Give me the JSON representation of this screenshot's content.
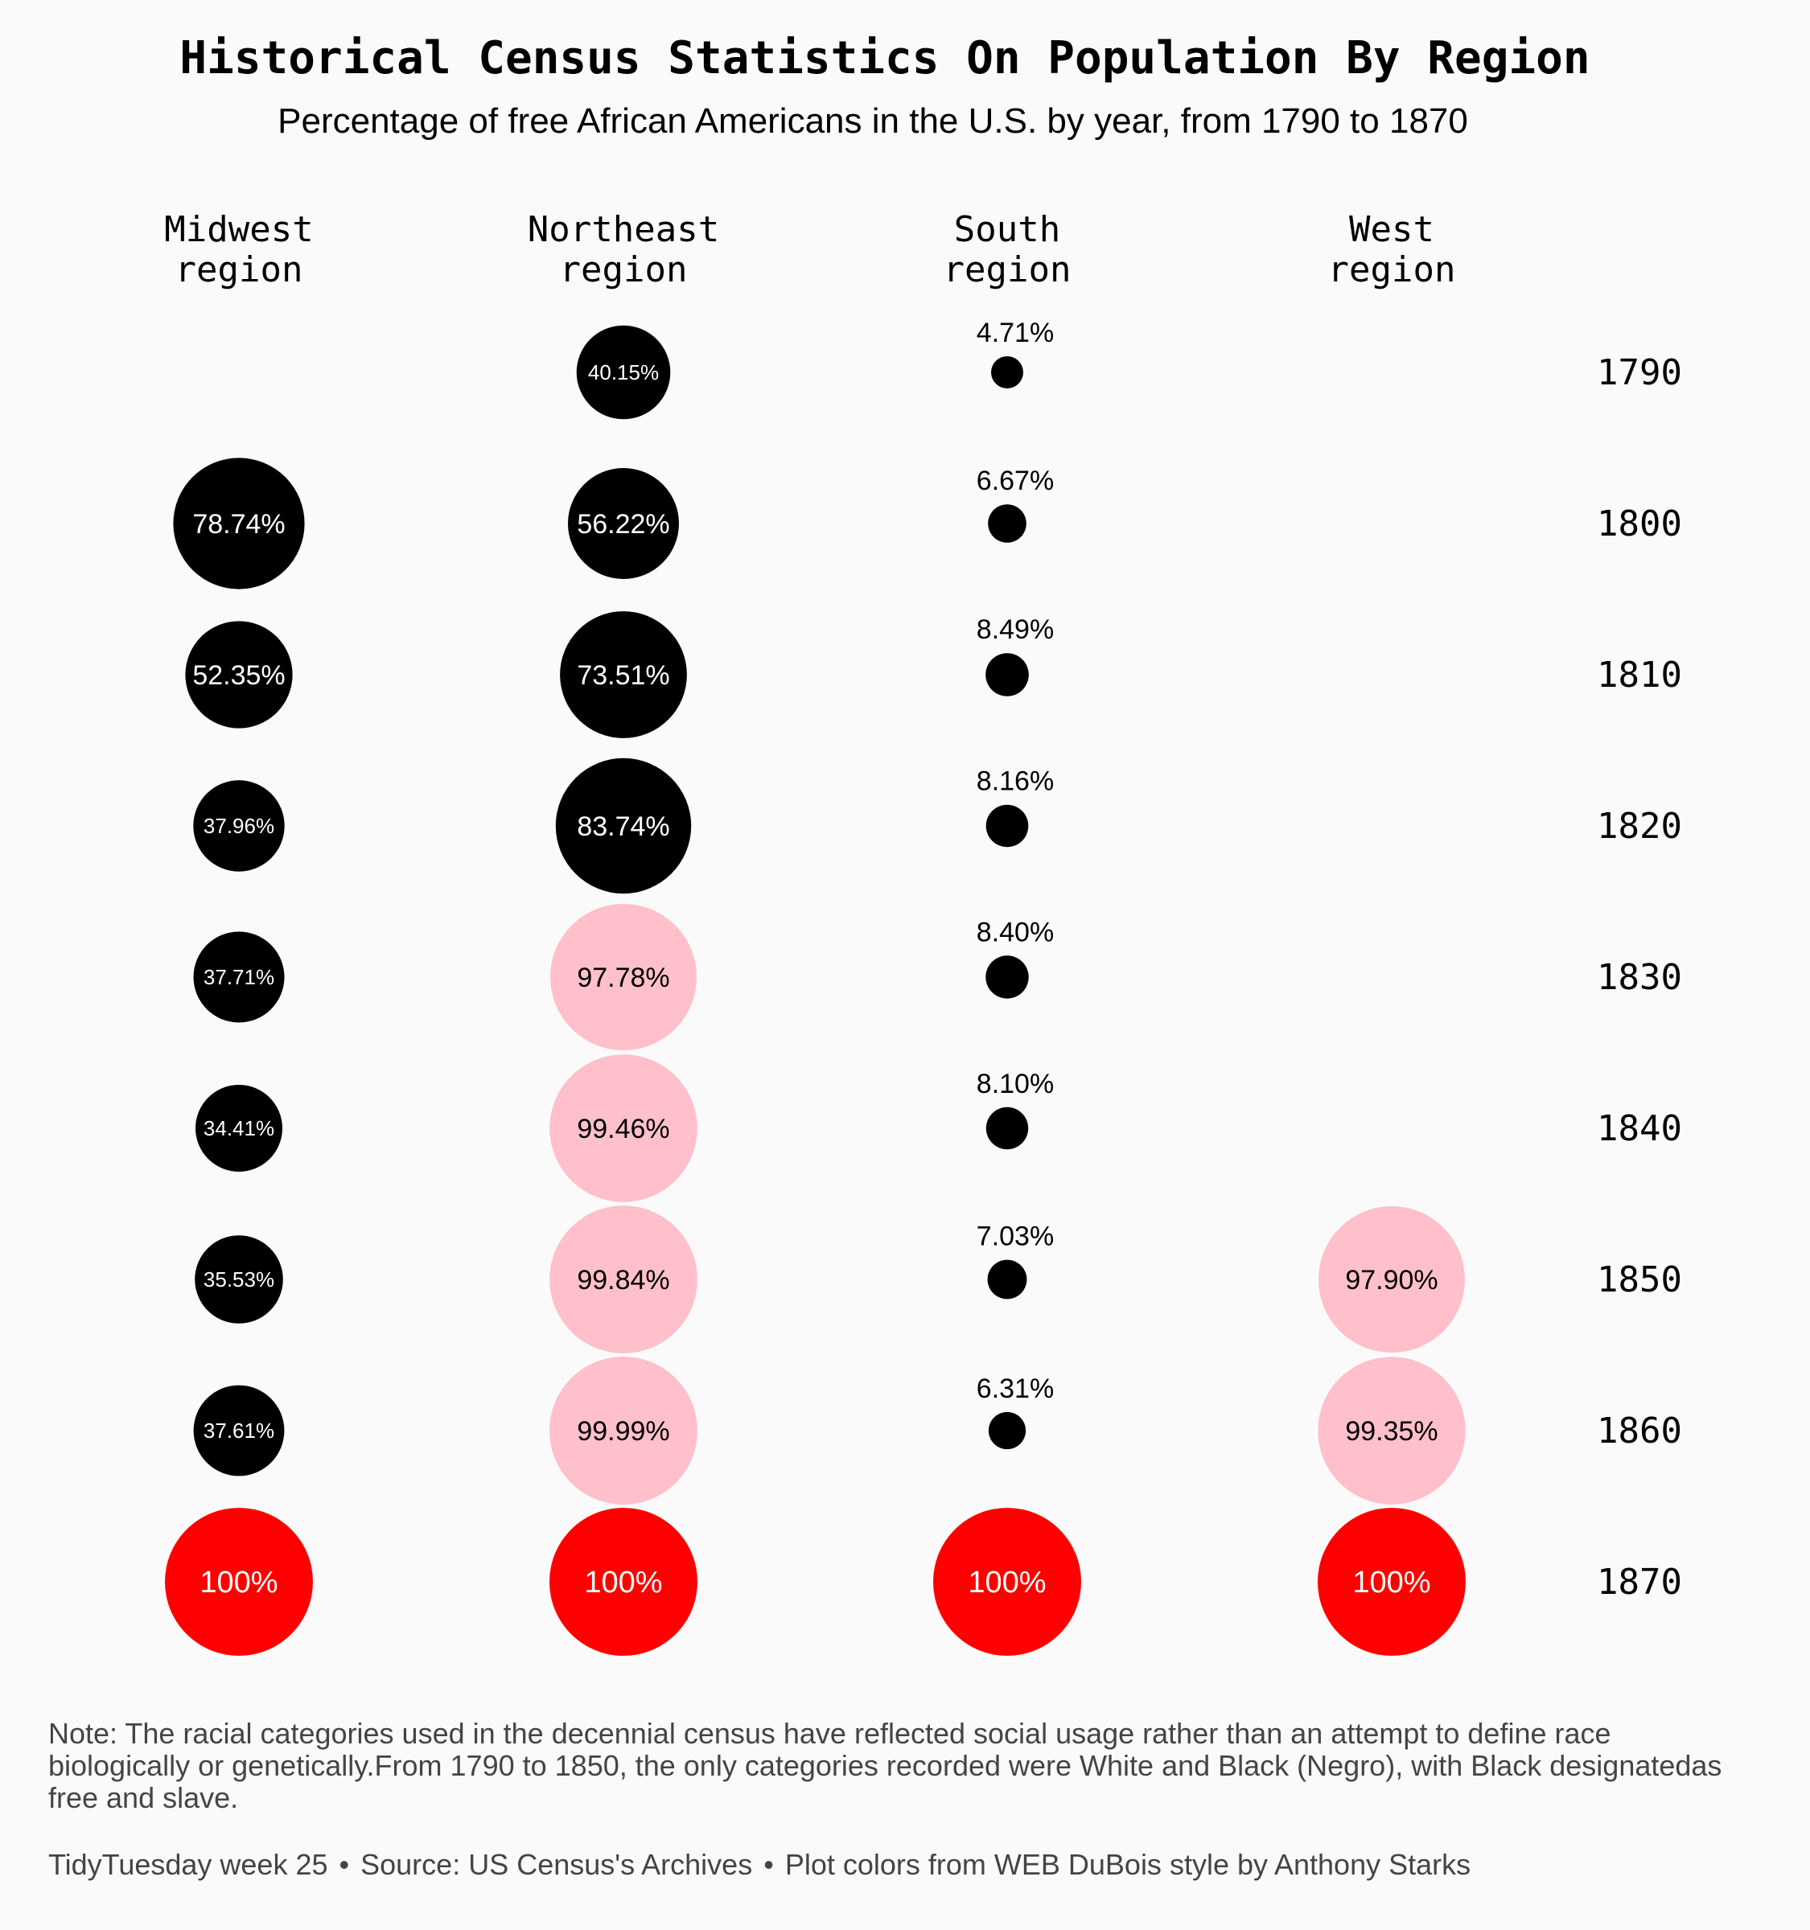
{
  "chart_data": {
    "type": "scatter",
    "title": "Historical Census Statistics On Population By Region",
    "subtitle": "Percentage of free African Americans in the U.S. by year, from 1790 to 1870",
    "regions": [
      "Midwest\nregion",
      "Northeast\nregion",
      "South\nregion",
      "West\nregion"
    ],
    "years": [
      "1790",
      "1800",
      "1810",
      "1820",
      "1830",
      "1840",
      "1850",
      "1860",
      "1870"
    ],
    "series": [
      {
        "name": "Midwest",
        "values": [
          null,
          78.74,
          52.35,
          37.96,
          37.71,
          34.41,
          35.53,
          37.61,
          100
        ],
        "labels": [
          null,
          "78.74%",
          "52.35%",
          "37.96%",
          "37.71%",
          "34.41%",
          "35.53%",
          "37.61%",
          "100%"
        ]
      },
      {
        "name": "Northeast",
        "values": [
          40.15,
          56.22,
          73.51,
          83.74,
          97.78,
          99.46,
          99.84,
          99.99,
          100
        ],
        "labels": [
          "40.15%",
          "56.22%",
          "73.51%",
          "83.74%",
          "97.78%",
          "99.46%",
          "99.84%",
          "99.99%",
          "100%"
        ]
      },
      {
        "name": "South",
        "values": [
          4.71,
          6.67,
          8.49,
          8.16,
          8.4,
          8.1,
          7.03,
          6.31,
          100
        ],
        "labels": [
          "4.71%",
          "6.67%",
          "8.49%",
          "8.16%",
          "8.40%",
          "8.10%",
          "7.03%",
          "6.31%",
          "100%"
        ]
      },
      {
        "name": "West",
        "values": [
          null,
          null,
          null,
          null,
          null,
          null,
          97.9,
          99.35,
          100
        ],
        "labels": [
          null,
          null,
          null,
          null,
          null,
          null,
          "97.90%",
          "99.35%",
          "100%"
        ]
      }
    ],
    "colors": {
      "below_90": "#000000",
      "from_90_to_99_99": "#ffc0cb",
      "full_100": "#ff0000",
      "label_on_black": "#ffffff",
      "label_on_pink": "#000000",
      "label_on_red": "#ffffff"
    }
  },
  "note": "Note: The racial categories used in the decennial census have reflected social usage rather than an attempt to define race biologically or genetically.From 1790 to 1850, the only categories recorded were White and Black (Negro), with Black designatedas free and slave.",
  "footer": {
    "part1": "TidyTuesday week 25",
    "separator": "•",
    "part2": "Source: US Census's Archives",
    "part3": "Plot colors from WEB DuBois style by Anthony Starks"
  }
}
